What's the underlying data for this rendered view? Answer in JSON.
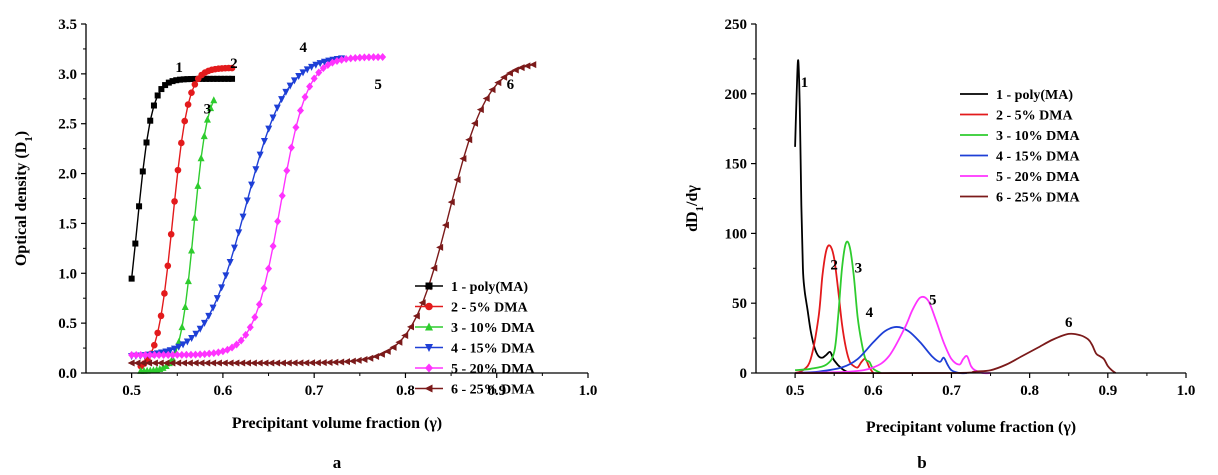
{
  "chart_data": [
    {
      "panel_label": "a",
      "type": "scatter",
      "xlabel": "Precipitant volume fraction (γ)",
      "ylabel_main": "Optical density (D",
      "ylabel_sub": "1",
      "ylabel_end": ")",
      "xlim": [
        0.45,
        1.0
      ],
      "ylim": [
        0.0,
        3.5
      ],
      "xticks": [
        "0.5",
        "0.6",
        "0.7",
        "0.8",
        "0.9",
        "1.0"
      ],
      "xtick_values": [
        0.5,
        0.6,
        0.7,
        0.8,
        0.9,
        1.0
      ],
      "yticks": [
        "0.0",
        "0.5",
        "1.0",
        "1.5",
        "2.0",
        "2.5",
        "3.0",
        "3.5"
      ],
      "ytick_values": [
        0.0,
        0.5,
        1.0,
        1.5,
        2.0,
        2.5,
        3.0,
        3.5
      ],
      "legend_position": "bottom-right",
      "series": [
        {
          "name": "1 - poly(MA)",
          "label": "1",
          "label_x": 0.552,
          "label_y": 3.02,
          "color": "#000000",
          "marker": "square",
          "x0": 0.5,
          "x1": 0.61,
          "n": 28,
          "ymin": 0.0,
          "ymax": 2.95,
          "mid": 0.506,
          "k": 0.008
        },
        {
          "name": "2 - 5% DMA",
          "label": "2",
          "label_x": 0.612,
          "label_y": 3.06,
          "color": "#e31a1c",
          "marker": "circle",
          "x0": 0.51,
          "x1": 0.61,
          "n": 28,
          "ymin": 0.02,
          "ymax": 3.06,
          "mid": 0.545,
          "k": 0.0085
        },
        {
          "name": "3 - 10% DMA",
          "label": "3",
          "label_x": 0.583,
          "label_y": 2.6,
          "color": "#2ecc2e",
          "marker": "triangle-up",
          "x0": 0.51,
          "x1": 0.59,
          "n": 24,
          "ymin": 0.02,
          "ymax": 2.88,
          "mid": 0.568,
          "k": 0.0075
        },
        {
          "name": "4 - 15% DMA",
          "label": "4",
          "label_x": 0.688,
          "label_y": 3.22,
          "color": "#1e3fd6",
          "marker": "triangle-down",
          "x0": 0.5,
          "x1": 0.73,
          "n": 50,
          "ymin": 0.16,
          "ymax": 3.18,
          "mid": 0.625,
          "k": 0.022
        },
        {
          "name": "5 - 20% DMA",
          "label": "5",
          "label_x": 0.77,
          "label_y": 2.85,
          "color": "#ff33ff",
          "marker": "diamond",
          "x0": 0.5,
          "x1": 0.775,
          "n": 56,
          "ymin": 0.18,
          "ymax": 3.17,
          "mid": 0.663,
          "k": 0.0145
        },
        {
          "name": "6 - 25% DMA",
          "label": "6",
          "label_x": 0.915,
          "label_y": 2.85,
          "color": "#7b1a1a",
          "marker": "triangle-left",
          "x0": 0.5,
          "x1": 0.94,
          "n": 70,
          "ymin": 0.1,
          "ymax": 3.13,
          "mid": 0.848,
          "k": 0.021
        }
      ]
    },
    {
      "panel_label": "b",
      "type": "line",
      "xlabel": "Precipitant volume fraction (γ)",
      "ylabel_main": "dD",
      "ylabel_sub": "1",
      "ylabel_end": "/dγ",
      "xlim": [
        0.45,
        1.0
      ],
      "ylim": [
        0,
        250
      ],
      "xticks": [
        "0.5",
        "0.6",
        "0.7",
        "0.8",
        "0.9",
        "1.0"
      ],
      "xtick_values": [
        0.5,
        0.6,
        0.7,
        0.8,
        0.9,
        1.0
      ],
      "yticks": [
        "0",
        "50",
        "100",
        "150",
        "200",
        "250"
      ],
      "ytick_values": [
        0,
        50,
        100,
        150,
        200,
        250
      ],
      "legend_position": "top-right",
      "series": [
        {
          "name": "1 - poly(MA)",
          "label": "1",
          "label_x": 0.512,
          "label_y": 205,
          "color": "#000000",
          "x": [
            0.5,
            0.502,
            0.504,
            0.506,
            0.508,
            0.51,
            0.512,
            0.514,
            0.516,
            0.52,
            0.525,
            0.53,
            0.535,
            0.54,
            0.545,
            0.55,
            0.56,
            0.57
          ],
          "y": [
            162,
            200,
            224,
            190,
            120,
            75,
            60,
            52,
            45,
            30,
            18,
            12,
            11,
            13,
            15,
            9,
            3,
            0
          ]
        },
        {
          "name": "2 - 5% DMA",
          "label": "2",
          "label_x": 0.55,
          "label_y": 74,
          "color": "#e31a1c",
          "x": [
            0.5,
            0.51,
            0.52,
            0.53,
            0.535,
            0.54,
            0.545,
            0.55,
            0.555,
            0.56,
            0.565,
            0.57,
            0.575,
            0.58,
            0.585,
            0.59,
            0.595,
            0.6
          ],
          "y": [
            0,
            2,
            10,
            40,
            70,
            88,
            91,
            82,
            60,
            35,
            18,
            8,
            5,
            4,
            8,
            10,
            4,
            0
          ]
        },
        {
          "name": "3 - 10% DMA",
          "label": "3",
          "label_x": 0.581,
          "label_y": 72,
          "color": "#2ecc2e",
          "x": [
            0.5,
            0.52,
            0.54,
            0.55,
            0.555,
            0.56,
            0.565,
            0.57,
            0.575,
            0.58,
            0.585,
            0.59,
            0.595,
            0.6,
            0.61
          ],
          "y": [
            2,
            3,
            6,
            15,
            40,
            75,
            93,
            90,
            70,
            40,
            22,
            10,
            8,
            3,
            0
          ]
        },
        {
          "name": "4 - 15% DMA",
          "label": "4",
          "label_x": 0.595,
          "label_y": 40,
          "color": "#1e3fd6",
          "x": [
            0.5,
            0.53,
            0.56,
            0.58,
            0.6,
            0.615,
            0.63,
            0.645,
            0.66,
            0.675,
            0.685,
            0.69,
            0.695,
            0.7,
            0.71,
            0.72
          ],
          "y": [
            0,
            1,
            4,
            10,
            22,
            30,
            33,
            30,
            22,
            12,
            8,
            11,
            6,
            2,
            0,
            0
          ]
        },
        {
          "name": "5 - 20% DMA",
          "label": "5",
          "label_x": 0.676,
          "label_y": 49,
          "color": "#ff33ff",
          "x": [
            0.5,
            0.57,
            0.6,
            0.62,
            0.64,
            0.65,
            0.66,
            0.67,
            0.68,
            0.69,
            0.7,
            0.71,
            0.715,
            0.72,
            0.725,
            0.73,
            0.74,
            0.75
          ],
          "y": [
            0,
            1,
            4,
            12,
            32,
            45,
            54,
            52,
            38,
            22,
            10,
            6,
            10,
            12,
            5,
            2,
            0,
            0
          ]
        },
        {
          "name": "6 - 25% DMA",
          "label": "6",
          "label_x": 0.85,
          "label_y": 33,
          "color": "#7b1a1a",
          "x": [
            0.5,
            0.7,
            0.73,
            0.75,
            0.77,
            0.79,
            0.81,
            0.83,
            0.85,
            0.865,
            0.875,
            0.88,
            0.885,
            0.89,
            0.895,
            0.9,
            0.905,
            0.91
          ],
          "y": [
            0,
            0,
            1,
            2,
            6,
            12,
            18,
            24,
            28,
            27,
            24,
            20,
            14,
            12,
            10,
            5,
            2,
            0
          ]
        }
      ]
    }
  ]
}
